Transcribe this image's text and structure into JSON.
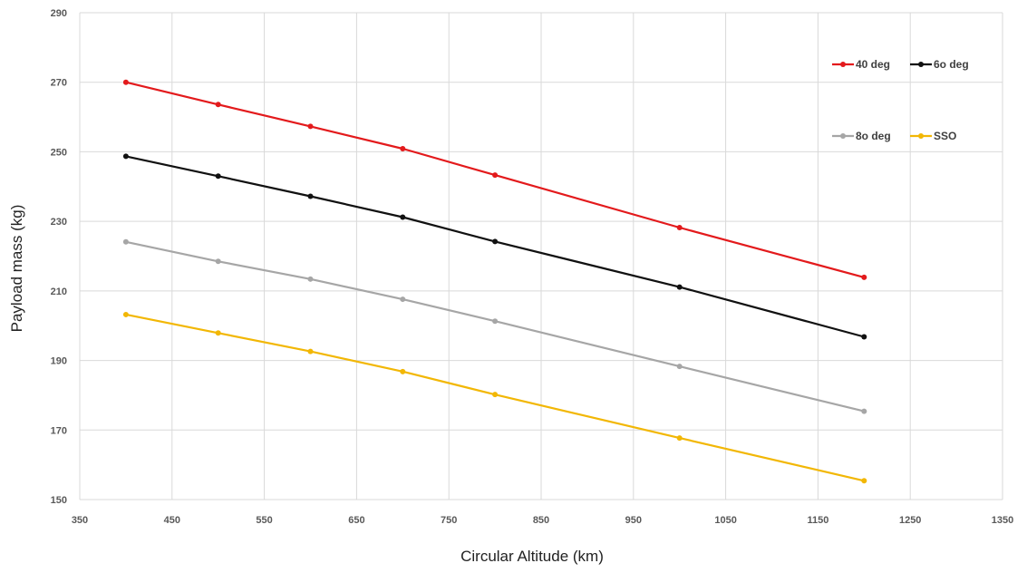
{
  "chart_data": {
    "type": "line",
    "title": "",
    "xlabel": "Circular Altitude (km)",
    "ylabel": "Payload mass (kg)",
    "xlim": [
      350,
      1350
    ],
    "ylim": [
      150,
      290
    ],
    "x_ticks": [
      350,
      450,
      550,
      650,
      750,
      850,
      950,
      1050,
      1150,
      1250,
      1350
    ],
    "y_ticks": [
      150,
      170,
      190,
      210,
      230,
      250,
      270,
      290
    ],
    "x": [
      400,
      500,
      600,
      700,
      800,
      1000,
      1200
    ],
    "grid": true,
    "legend_position": "top-right",
    "series": [
      {
        "name": "40 deg",
        "color": "#e31a1c",
        "values": [
          270,
          263.6,
          257.3,
          250.9,
          243.3,
          228.2,
          213.9
        ]
      },
      {
        "name": "6o deg",
        "color": "#111111",
        "values": [
          248.7,
          243,
          237.2,
          231.2,
          224.2,
          211.1,
          196.8
        ]
      },
      {
        "name": "8o deg",
        "color": "#a6a6a6",
        "values": [
          224.1,
          218.5,
          213.4,
          207.6,
          201.3,
          188.3,
          175.4
        ]
      },
      {
        "name": "SSO",
        "color": "#f2b705",
        "values": [
          203.2,
          197.9,
          192.6,
          186.8,
          180.2,
          167.7,
          155.4
        ]
      }
    ]
  }
}
